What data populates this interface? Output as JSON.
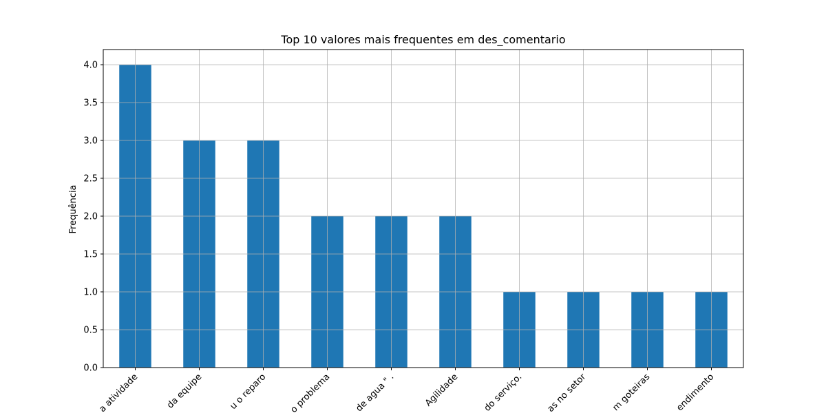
{
  "chart_data": {
    "type": "bar",
    "title": "Top 10 valores mais frequentes em des_comentario",
    "xlabel": "",
    "ylabel": "Frequência",
    "categories": [
      "a atividade",
      "da equipe",
      "u o reparo",
      "o problema",
      "de agua \" .",
      "Agilidade",
      "do serviço.",
      "as no setor",
      "m goteiras",
      "endimento"
    ],
    "values": [
      4,
      3,
      3,
      2,
      2,
      2,
      1,
      1,
      1,
      1
    ],
    "ylim": [
      0,
      4.2
    ],
    "yticks": [
      "0.0",
      "0.5",
      "1.0",
      "1.5",
      "2.0",
      "2.5",
      "3.0",
      "3.5",
      "4.0"
    ],
    "grid": true,
    "bar_color": "#1f77b4",
    "grid_color": "#b0b0b0"
  }
}
